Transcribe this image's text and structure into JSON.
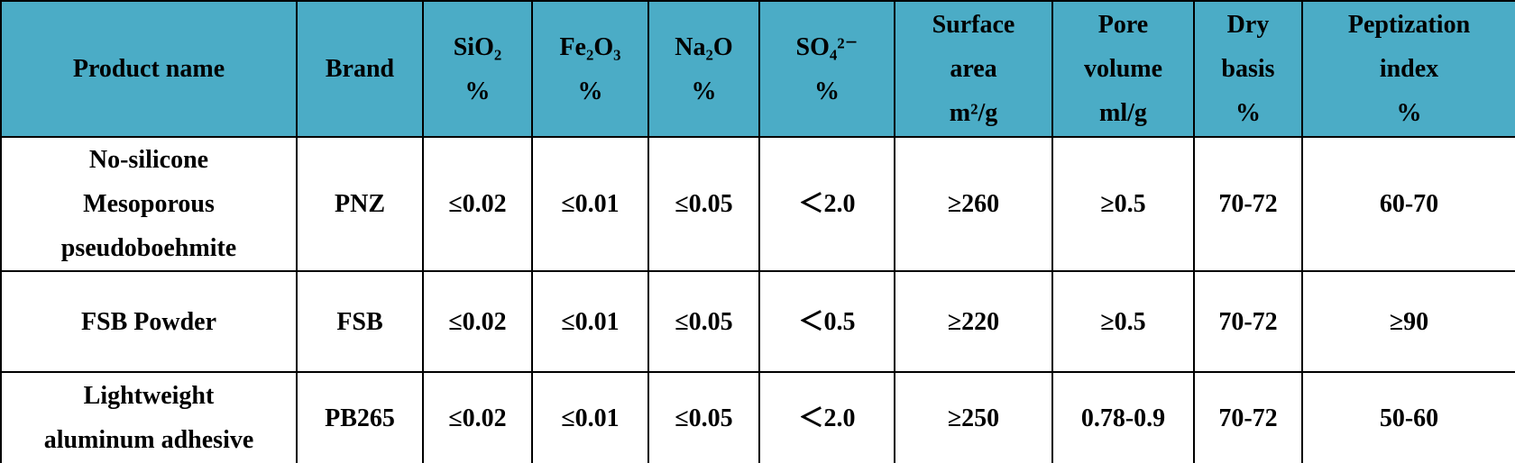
{
  "table": {
    "header": [
      [
        "Product name"
      ],
      [
        "Brand"
      ],
      [
        "SiO₂",
        "%"
      ],
      [
        "Fe₂O₃",
        "%"
      ],
      [
        "Na₂O",
        "%"
      ],
      [
        "SO₄²⁻",
        "%"
      ],
      [
        "Surface",
        "area",
        "m²/g"
      ],
      [
        "Pore",
        "volume",
        "ml/g"
      ],
      [
        "Dry",
        "basis",
        "%"
      ],
      [
        "Peptization",
        "index",
        "%"
      ]
    ],
    "rows": [
      [
        [
          "No-silicone",
          "Mesoporous",
          "pseudoboehmite"
        ],
        "PNZ",
        "≤0.02",
        "≤0.01",
        "≤0.05",
        "＜2.0",
        "≥260",
        "≥0.5",
        "70-72",
        "60-70"
      ],
      [
        [
          "FSB Powder"
        ],
        "FSB",
        "≤0.02",
        "≤0.01",
        "≤0.05",
        "＜0.5",
        "≥220",
        "≥0.5",
        "70-72",
        "≥90"
      ],
      [
        [
          "Lightweight",
          "aluminum adhesive"
        ],
        "PB265",
        "≤0.02",
        "≤0.01",
        "≤0.05",
        "＜2.0",
        "≥250",
        "0.78-0.9",
        "70-72",
        "50-60"
      ]
    ]
  }
}
